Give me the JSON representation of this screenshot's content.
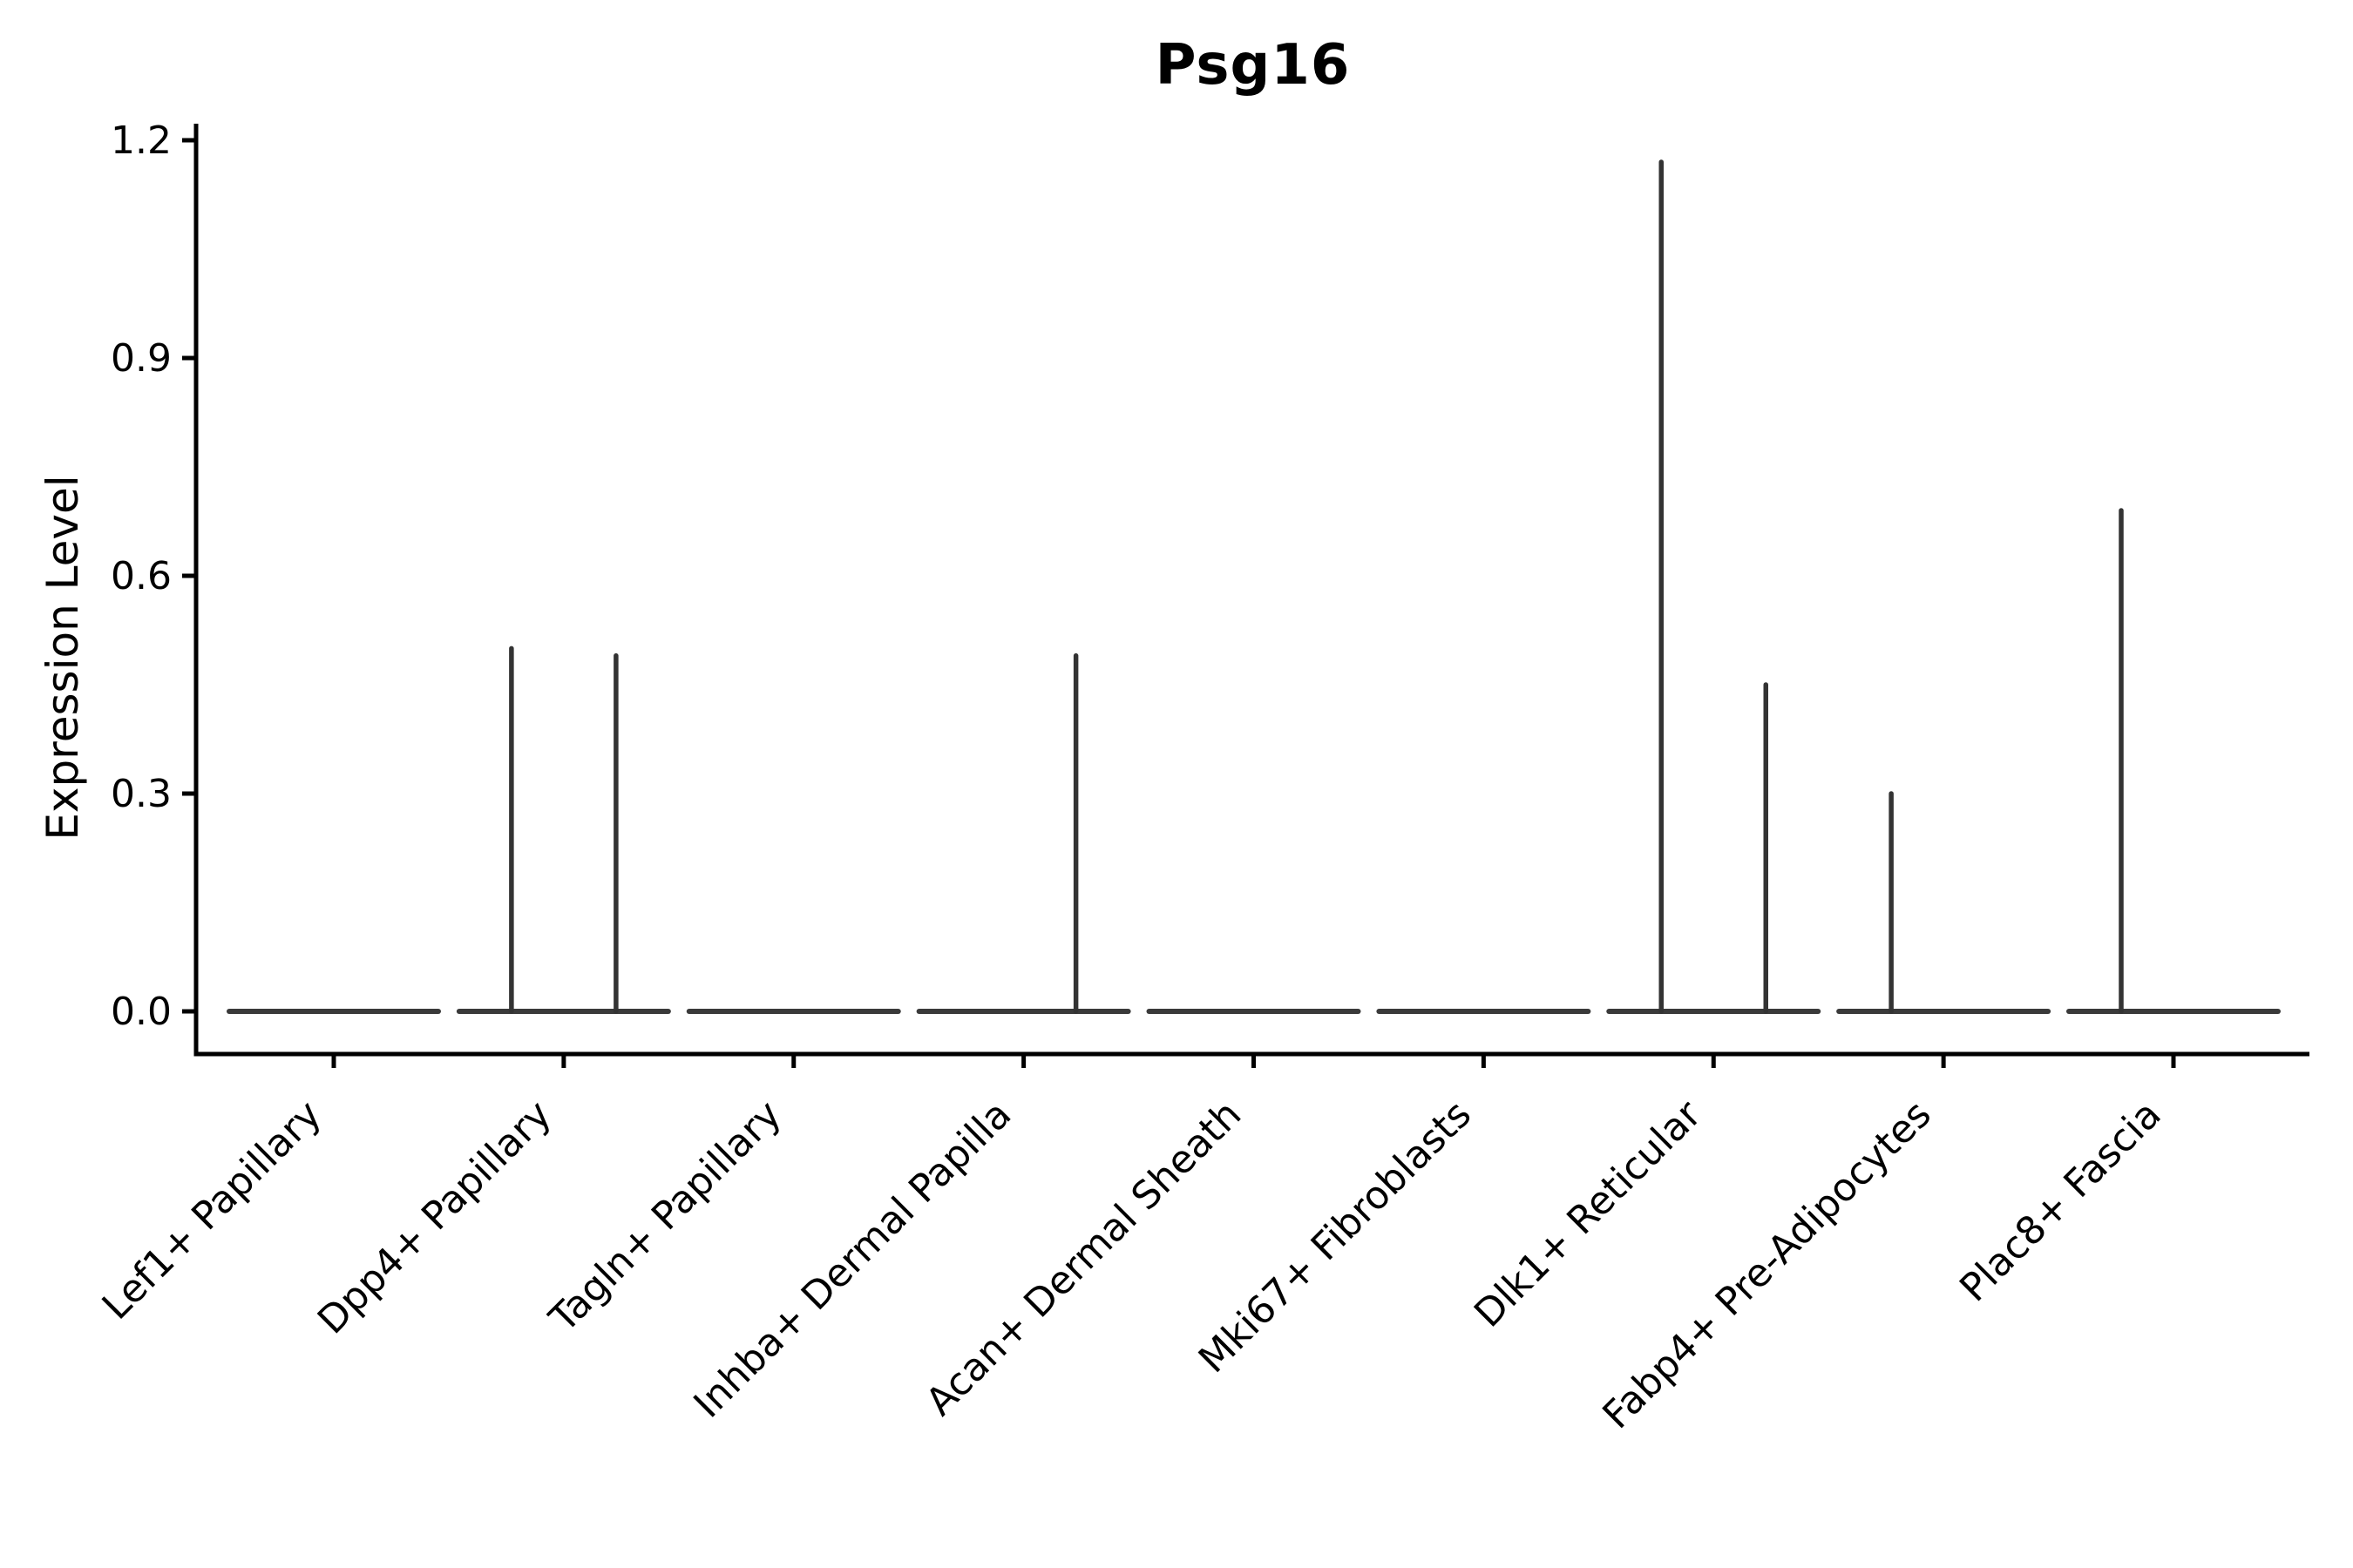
{
  "figure": {
    "title": "Psg16",
    "ylabel": "Expression Level"
  },
  "chart_data": {
    "type": "violin",
    "title": "Psg16",
    "xlabel": "",
    "ylabel": "Expression Level",
    "ylim": [
      0,
      1.2
    ],
    "yticks": [
      "0.0",
      "0.3",
      "0.6",
      "0.9",
      "1.2"
    ],
    "ytick_values": [
      0.0,
      0.3,
      0.6,
      0.9,
      1.2
    ],
    "grid": false,
    "legend": "none",
    "xtick_rotation": 45,
    "categories": [
      "Lef1+ Papillary",
      "Dpp4+ Papillary",
      "Tagln+ Papillary",
      "Inhba+ Dermal Papilla",
      "Acan+ Dermal Sheath",
      "Mki67+ Fibroblasts",
      "Dlk1+ Reticular",
      "Fabp4+ Pre-Adipocytes",
      "Plac8+ Fascia"
    ],
    "series": [
      {
        "category": "Lef1+ Papillary",
        "base_value": 0.0,
        "spikes": []
      },
      {
        "category": "Dpp4+ Papillary",
        "base_value": 0.0,
        "spikes": [
          {
            "slot": "left",
            "max": 0.5
          },
          {
            "slot": "right",
            "max": 0.49
          }
        ]
      },
      {
        "category": "Tagln+ Papillary",
        "base_value": 0.0,
        "spikes": []
      },
      {
        "category": "Inhba+ Dermal Papilla",
        "base_value": 0.0,
        "spikes": [
          {
            "slot": "right",
            "max": 0.49
          }
        ]
      },
      {
        "category": "Acan+ Dermal Sheath",
        "base_value": 0.0,
        "spikes": []
      },
      {
        "category": "Mki67+ Fibroblasts",
        "base_value": 0.0,
        "spikes": []
      },
      {
        "category": "Dlk1+ Reticular",
        "base_value": 0.0,
        "spikes": [
          {
            "slot": "left",
            "max": 1.17
          },
          {
            "slot": "right",
            "max": 0.45
          }
        ]
      },
      {
        "category": "Fabp4+ Pre-Adipocytes",
        "base_value": 0.0,
        "spikes": [
          {
            "slot": "left",
            "max": 0.3
          }
        ]
      },
      {
        "category": "Plac8+ Fascia",
        "base_value": 0.0,
        "spikes": [
          {
            "slot": "left",
            "max": 0.69
          }
        ]
      }
    ],
    "colors": {
      "violin_line": "#3a3a3a",
      "spike_line": "#333333",
      "axis": "#000000",
      "background": "#ffffff"
    }
  }
}
